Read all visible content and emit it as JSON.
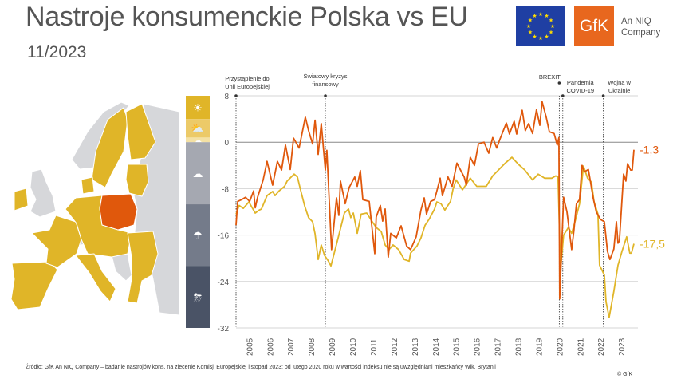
{
  "header": {
    "title": "Nastroje konsumenckie Polska vs EU",
    "subtitle": "11/2023",
    "gfk_logo": "GfK",
    "niq_line1": "An NIQ",
    "niq_line2": "Company"
  },
  "footer": {
    "source": "Źródło: GfK An NIQ Company – badanie nastrojów kons. na zlecenie Komisji Europejskiej listopad 2023; od lutego 2020 roku w wartości indeksu nie są uwzględniani mieszkańcy Wlk. Brytanii",
    "copyright": "© GfK"
  },
  "colors": {
    "poland": "#e0580c",
    "eu": "#e0b528",
    "map_eu": "#e0b528",
    "map_other": "#d6d7da"
  },
  "legend_bands": [
    {
      "from": 4,
      "to": 8,
      "color": "#e0b528",
      "icon": "sun-icon"
    },
    {
      "from": 0.8,
      "to": 4,
      "color": "#ecca68",
      "icon": "sun-cloud-icon"
    },
    {
      "from": 0,
      "to": 0.8,
      "color": "#f4e1a4",
      "icon": "cloud-icon"
    },
    {
      "from": -10.7,
      "to": 0,
      "color": "#a5a8b1",
      "icon": "cloud-icon"
    },
    {
      "from": -21.3,
      "to": -10.7,
      "color": "#747b8a",
      "icon": "rain-cloud-icon"
    },
    {
      "from": -32,
      "to": -21.3,
      "color": "#4a5366",
      "icon": "storm-cloud-icon"
    }
  ],
  "chart_data": {
    "type": "line",
    "title": "Nastroje konsumenckie Polska vs EU",
    "ylim": [
      -32,
      8
    ],
    "xlim": [
      2004.37,
      2023.61
    ],
    "yticks": [
      "8",
      "0",
      "-8",
      "-16",
      "-24",
      "-32"
    ],
    "ytick_values": [
      8,
      0,
      -8,
      -16,
      -24,
      -32
    ],
    "xticks": [
      "2005",
      "2006",
      "2007",
      "2008",
      "2009",
      "2010",
      "2011",
      "2012",
      "2013",
      "2014",
      "2015",
      "2016",
      "2017",
      "2018",
      "2019",
      "2020",
      "2021",
      "2022",
      "2023"
    ],
    "grid": "horizontal",
    "events": [
      {
        "x": 2004.37,
        "label1": "Przystąpienie do",
        "label2": "Unii Europejskiej"
      },
      {
        "x": 2008.69,
        "label1": "Światowy kryzys",
        "label2": "finansowy"
      },
      {
        "x": 2020.0,
        "label1": "BREXIT",
        "label2": ""
      },
      {
        "x": 2020.17,
        "label1": "Pandemia",
        "label2": "COVID-19"
      },
      {
        "x": 2022.13,
        "label1": "Wojna w",
        "label2": "Ukrainie"
      }
    ],
    "series": [
      {
        "name": "Polska",
        "color": "#e0580c",
        "last_label": "-1,3",
        "points": [
          [
            2004.37,
            -14.3
          ],
          [
            2004.45,
            -10.2
          ],
          [
            2004.64,
            -9.9
          ],
          [
            2004.83,
            -9.5
          ],
          [
            2005.03,
            -10.2
          ],
          [
            2005.22,
            -8.4
          ],
          [
            2005.3,
            -11.3
          ],
          [
            2005.41,
            -9.5
          ],
          [
            2005.68,
            -6.5
          ],
          [
            2005.87,
            -3.3
          ],
          [
            2006.14,
            -7.4
          ],
          [
            2006.37,
            -3.3
          ],
          [
            2006.57,
            -4.8
          ],
          [
            2006.76,
            -0.5
          ],
          [
            2006.99,
            -4.7
          ],
          [
            2007.15,
            0.7
          ],
          [
            2007.42,
            -1
          ],
          [
            2007.72,
            4.3
          ],
          [
            2007.88,
            2
          ],
          [
            2008.07,
            -0.3
          ],
          [
            2008.19,
            3.8
          ],
          [
            2008.34,
            -2.1
          ],
          [
            2008.49,
            3.2
          ],
          [
            2008.69,
            -4.8
          ],
          [
            2008.76,
            -1.4
          ],
          [
            2008.99,
            -18.5
          ],
          [
            2009.23,
            -9.6
          ],
          [
            2009.34,
            -12.6
          ],
          [
            2009.42,
            -6.7
          ],
          [
            2009.65,
            -10.6
          ],
          [
            2009.84,
            -7.8
          ],
          [
            2010.11,
            -6
          ],
          [
            2010.23,
            -7.6
          ],
          [
            2010.38,
            -4.9
          ],
          [
            2010.5,
            -9.9
          ],
          [
            2010.81,
            -10.2
          ],
          [
            2011.08,
            -19.2
          ],
          [
            2011.15,
            -12.9
          ],
          [
            2011.35,
            -10.9
          ],
          [
            2011.46,
            -13.6
          ],
          [
            2011.58,
            -11.5
          ],
          [
            2011.73,
            -19.8
          ],
          [
            2011.85,
            -15.7
          ],
          [
            2012.12,
            -16.5
          ],
          [
            2012.35,
            -14.4
          ],
          [
            2012.62,
            -17.9
          ],
          [
            2012.81,
            -18.5
          ],
          [
            2013.08,
            -16.3
          ],
          [
            2013.31,
            -11.7
          ],
          [
            2013.47,
            -9.6
          ],
          [
            2013.58,
            -12.4
          ],
          [
            2013.78,
            -10.2
          ],
          [
            2013.97,
            -9.9
          ],
          [
            2014.05,
            -8.8
          ],
          [
            2014.24,
            -6.2
          ],
          [
            2014.35,
            -9.2
          ],
          [
            2014.62,
            -6
          ],
          [
            2014.82,
            -7.6
          ],
          [
            2015.05,
            -3.6
          ],
          [
            2015.4,
            -6
          ],
          [
            2015.51,
            -7.4
          ],
          [
            2015.7,
            -2.6
          ],
          [
            2015.9,
            -4
          ],
          [
            2016.09,
            -0.3
          ],
          [
            2016.36,
            0
          ],
          [
            2016.59,
            -1.9
          ],
          [
            2016.78,
            0.8
          ],
          [
            2016.98,
            -1
          ],
          [
            2017.13,
            0.5
          ],
          [
            2017.44,
            3.3
          ],
          [
            2017.59,
            1.4
          ],
          [
            2017.82,
            3.6
          ],
          [
            2017.94,
            1.4
          ],
          [
            2018.21,
            5.5
          ],
          [
            2018.36,
            2
          ],
          [
            2018.52,
            3.2
          ],
          [
            2018.71,
            1.5
          ],
          [
            2018.9,
            5.6
          ],
          [
            2019.06,
            2.9
          ],
          [
            2019.17,
            7
          ],
          [
            2019.37,
            4.3
          ],
          [
            2019.52,
            1.8
          ],
          [
            2019.75,
            1.5
          ],
          [
            2019.9,
            -0.5
          ],
          [
            2019.98,
            0.8
          ],
          [
            2020.02,
            -27
          ],
          [
            2020.21,
            -9.5
          ],
          [
            2020.37,
            -12
          ],
          [
            2020.6,
            -18.5
          ],
          [
            2020.71,
            -15.1
          ],
          [
            2020.83,
            -10.6
          ],
          [
            2020.98,
            -9.9
          ],
          [
            2021.1,
            -4
          ],
          [
            2021.22,
            -5.1
          ],
          [
            2021.41,
            -4.7
          ],
          [
            2021.64,
            -9.6
          ],
          [
            2021.79,
            -12
          ],
          [
            2021.99,
            -13.3
          ],
          [
            2022.18,
            -13.7
          ],
          [
            2022.33,
            -18.8
          ],
          [
            2022.45,
            -20.2
          ],
          [
            2022.64,
            -18.4
          ],
          [
            2022.76,
            -13.7
          ],
          [
            2022.84,
            -17.4
          ],
          [
            2022.91,
            -17
          ],
          [
            2023.11,
            -5.5
          ],
          [
            2023.22,
            -6.7
          ],
          [
            2023.3,
            -3.7
          ],
          [
            2023.45,
            -4.8
          ],
          [
            2023.53,
            -4.8
          ],
          [
            2023.61,
            -1.3
          ]
        ]
      },
      {
        "name": "EU",
        "color": "#e0b528",
        "last_label": "-17,5",
        "points": [
          [
            2004.37,
            -12.4
          ],
          [
            2004.52,
            -10.9
          ],
          [
            2004.72,
            -11.4
          ],
          [
            2004.99,
            -10.3
          ],
          [
            2005.3,
            -12.2
          ],
          [
            2005.49,
            -11.7
          ],
          [
            2005.6,
            -11.5
          ],
          [
            2005.87,
            -9.2
          ],
          [
            2006.14,
            -8.5
          ],
          [
            2006.26,
            -9.2
          ],
          [
            2006.45,
            -8.4
          ],
          [
            2006.72,
            -7.6
          ],
          [
            2006.84,
            -6.7
          ],
          [
            2007.18,
            -5.5
          ],
          [
            2007.34,
            -6
          ],
          [
            2007.49,
            -8.2
          ],
          [
            2007.69,
            -11
          ],
          [
            2007.88,
            -13
          ],
          [
            2008.07,
            -13.7
          ],
          [
            2008.19,
            -15.8
          ],
          [
            2008.34,
            -20.2
          ],
          [
            2008.49,
            -17.7
          ],
          [
            2008.65,
            -19.5
          ],
          [
            2008.84,
            -20.5
          ],
          [
            2008.96,
            -21.3
          ],
          [
            2009.27,
            -17
          ],
          [
            2009.61,
            -12.2
          ],
          [
            2009.81,
            -11.5
          ],
          [
            2009.92,
            -13
          ],
          [
            2010.04,
            -12.2
          ],
          [
            2010.23,
            -15.7
          ],
          [
            2010.42,
            -12.4
          ],
          [
            2010.69,
            -12.2
          ],
          [
            2010.96,
            -13.7
          ],
          [
            2011.15,
            -14.7
          ],
          [
            2011.39,
            -15.4
          ],
          [
            2011.58,
            -17.7
          ],
          [
            2011.77,
            -18.5
          ],
          [
            2011.96,
            -17.7
          ],
          [
            2012.23,
            -18.5
          ],
          [
            2012.5,
            -20.2
          ],
          [
            2012.74,
            -20.5
          ],
          [
            2012.81,
            -19.1
          ],
          [
            2013.12,
            -17.9
          ],
          [
            2013.31,
            -16.5
          ],
          [
            2013.51,
            -14.3
          ],
          [
            2013.7,
            -13.3
          ],
          [
            2013.97,
            -11.5
          ],
          [
            2014.08,
            -10.3
          ],
          [
            2014.28,
            -10.6
          ],
          [
            2014.47,
            -11.7
          ],
          [
            2014.74,
            -10.2
          ],
          [
            2014.86,
            -8.1
          ],
          [
            2015.01,
            -6.5
          ],
          [
            2015.32,
            -8.2
          ],
          [
            2015.7,
            -6.2
          ],
          [
            2016.01,
            -7.6
          ],
          [
            2016.47,
            -7.6
          ],
          [
            2016.78,
            -5.8
          ],
          [
            2016.98,
            -5.1
          ],
          [
            2017.36,
            -3.7
          ],
          [
            2017.71,
            -2.6
          ],
          [
            2018.02,
            -3.8
          ],
          [
            2018.33,
            -4.8
          ],
          [
            2018.71,
            -6.5
          ],
          [
            2018.98,
            -5.5
          ],
          [
            2019.29,
            -6.2
          ],
          [
            2019.64,
            -6.2
          ],
          [
            2019.83,
            -5.8
          ],
          [
            2019.94,
            -6
          ],
          [
            2020.06,
            -22
          ],
          [
            2020.21,
            -16
          ],
          [
            2020.44,
            -14.7
          ],
          [
            2020.6,
            -15.7
          ],
          [
            2020.79,
            -13.3
          ],
          [
            2020.98,
            -10.6
          ],
          [
            2021.17,
            -4.1
          ],
          [
            2021.37,
            -6.2
          ],
          [
            2021.56,
            -6.9
          ],
          [
            2021.68,
            -10.2
          ],
          [
            2021.87,
            -12.4
          ],
          [
            2021.95,
            -21.2
          ],
          [
            2022.18,
            -22.9
          ],
          [
            2022.26,
            -27.5
          ],
          [
            2022.41,
            -30.2
          ],
          [
            2022.64,
            -25.7
          ],
          [
            2022.84,
            -21.2
          ],
          [
            2023.03,
            -18.8
          ],
          [
            2023.26,
            -16.3
          ],
          [
            2023.41,
            -19.1
          ],
          [
            2023.49,
            -19.1
          ],
          [
            2023.61,
            -17.5
          ]
        ]
      }
    ]
  }
}
